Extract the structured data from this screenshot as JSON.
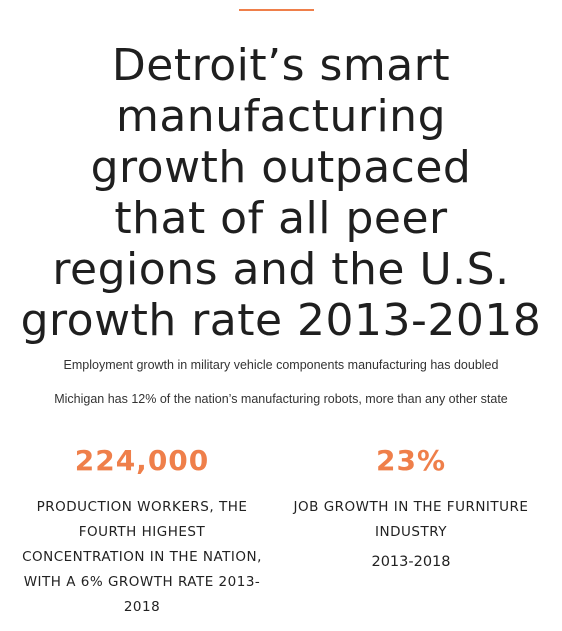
{
  "headline": {
    "lines": [
      "Detroit’s smart",
      "manufacturing",
      "growth outpaced",
      "that of all peer",
      "regions and the U.S.",
      "growth rate 2013-2018"
    ]
  },
  "sublines": [
    "Employment growth in military vehicle components manufacturing has doubled",
    "Michigan has 12% of the nation’s manufacturing robots, more than any other state"
  ],
  "stats": [
    {
      "value": "224,000",
      "desc_lines": [
        "PRODUCTION WORKERS, THE",
        "FOURTH HIGHEST",
        "CONCENTRATION IN THE NATION,",
        "WITH A 6% GROWTH RATE 2013-",
        "2018"
      ],
      "sub": ""
    },
    {
      "value": "23%",
      "desc_lines": [
        "JOB GROWTH IN THE FURNITURE",
        "INDUSTRY"
      ],
      "sub": "2013-2018"
    }
  ],
  "colors": {
    "accent": "#ef7f4a",
    "text": "#222222"
  }
}
